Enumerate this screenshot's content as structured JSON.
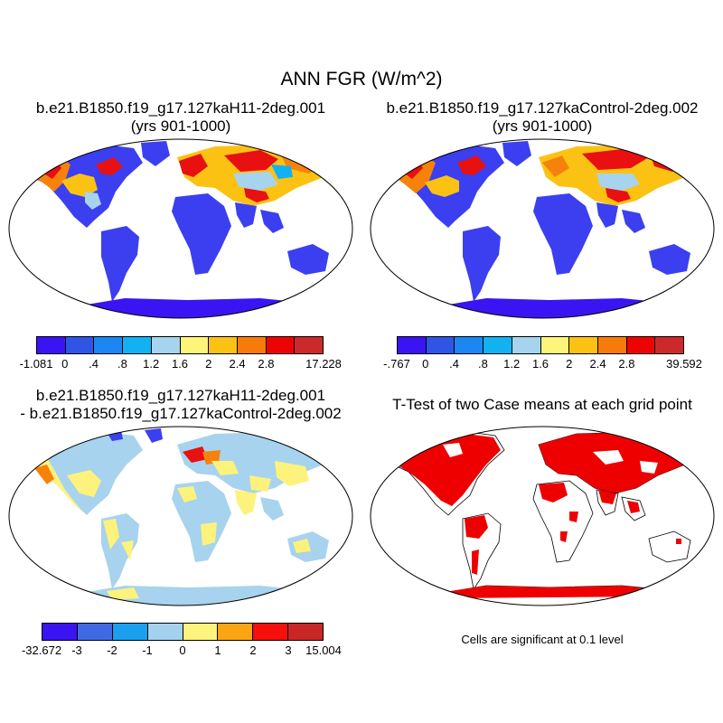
{
  "title": "ANN FGR (W/m^2)",
  "panels": [
    {
      "title_line1": "b.e21.B1850.f19_g17.127kaH11-2deg.001",
      "title_line2": "(yrs 901-1000)"
    },
    {
      "title_line1": "b.e21.B1850.f19_g17.127kaControl-2deg.002",
      "title_line2": "(yrs 901-1000)"
    },
    {
      "title_line1": "b.e21.B1850.f19_g17.127kaH11-2deg.001",
      "title_line2": "- b.e21.B1850.f19_g17.127kaControl-2deg.002"
    },
    {
      "title_line1": "T-Test of two Case means at each grid point"
    }
  ],
  "significance_note": "Cells are significant at 0.1 level",
  "colorbars": [
    {
      "labels": [
        "-1.081",
        "0",
        ".4",
        ".8",
        "1.2",
        "1.6",
        "2",
        "2.4",
        "2.8",
        "17.228"
      ],
      "colors": [
        "#3b14f4",
        "#2f55e6",
        "#1c86f3",
        "#12b2f2",
        "#a6d4ee",
        "#fdf57a",
        "#fcc213",
        "#f77b0b",
        "#ee0303",
        "#cc2a2a"
      ]
    },
    {
      "labels": [
        "-.767",
        "0",
        ".4",
        ".8",
        "1.2",
        "1.6",
        "2",
        "2.4",
        "2.8",
        "39.592"
      ],
      "colors": [
        "#3b14f4",
        "#2f55e6",
        "#1c86f3",
        "#12b2f2",
        "#a6d4ee",
        "#fdf57a",
        "#fcc213",
        "#f77b0b",
        "#ee0303",
        "#cc2a2a"
      ]
    },
    {
      "labels": [
        "-32.672",
        "-3",
        "-2",
        "-1",
        "0",
        "1",
        "2",
        "3",
        "15.004"
      ],
      "colors": [
        "#3b14f4",
        "#3f6ae3",
        "#1aa0ef",
        "#a4d2ee",
        "#fcf47c",
        "#fca513",
        "#f60f0b",
        "#c92626"
      ]
    }
  ],
  "palette": {
    "low": "#3b3ff0",
    "ocean": "#ffffff",
    "diff_land": "#a7d3ee",
    "diff_pos": "#fdf27c",
    "warm_orange": "#f7820b",
    "hot_red": "#e81010",
    "sig_red": "#ee0000"
  }
}
